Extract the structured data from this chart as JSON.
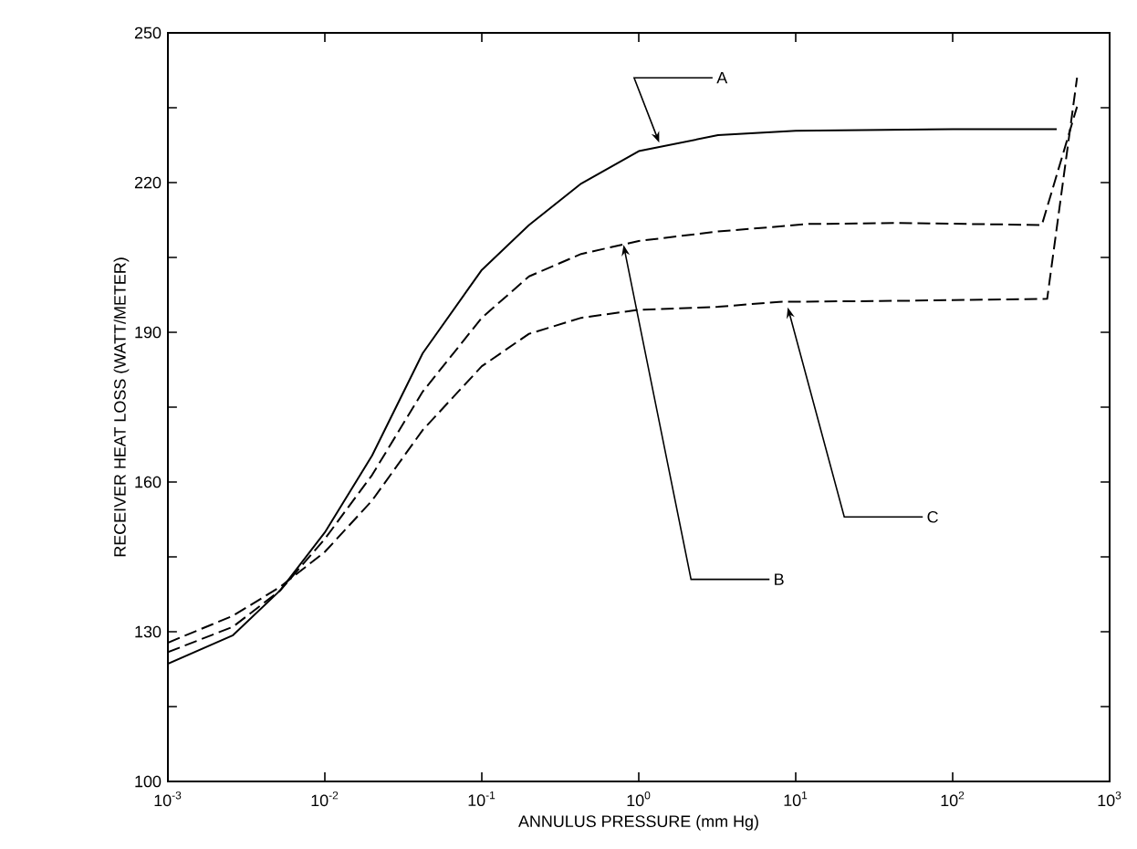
{
  "chart_data": {
    "type": "line",
    "xlabel": "ANNULUS PRESSURE (mm Hg)",
    "ylabel": "RECEIVER HEAT LOSS (WATT/METER)",
    "log": "x",
    "grid": false,
    "marker": "none",
    "xlim": [
      0.001,
      1000
    ],
    "ylim": [
      100,
      250
    ],
    "xticks": [
      {
        "value": 0.001,
        "label": "10$^{-3}$"
      },
      {
        "value": 0.01,
        "label": "10$^{-2}$"
      },
      {
        "value": 0.1,
        "label": "10$^{-1}$"
      },
      {
        "value": 1,
        "label": "10$^{0}$"
      },
      {
        "value": 10,
        "label": "10$^{1}$"
      },
      {
        "value": 100,
        "label": "10$^{2}$"
      },
      {
        "value": 1000,
        "label": "10$^{3}$"
      }
    ],
    "yticks": [
      100,
      {
        "value": 115,
        "label": null
      },
      130,
      {
        "value": 145,
        "label": null
      },
      160,
      {
        "value": 175,
        "label": null
      },
      190,
      {
        "value": 205,
        "label": null
      },
      220,
      {
        "value": 235,
        "label": null
      },
      250
    ],
    "series": [
      {
        "color": "#000000",
        "line_style": "solid",
        "x": [
          0.001,
          0.0026,
          0.0052,
          0.01,
          0.02,
          0.042,
          0.1,
          0.2,
          0.43,
          1,
          3.2,
          10,
          100,
          460
        ],
        "values": [
          123.6,
          129.3,
          138.3,
          149.9,
          165.3,
          185.8,
          202.5,
          211.5,
          219.8,
          226.3,
          229.5,
          230.4,
          230.7,
          230.7
        ]
      },
      {
        "color": "#000000",
        "line_style": "dashed",
        "x": [
          0.001,
          0.0026,
          0.0052,
          0.01,
          0.02,
          0.042,
          0.1,
          0.2,
          0.43,
          1,
          3.2,
          12,
          45,
          370,
          620
        ],
        "values": [
          125.9,
          131,
          138.3,
          148.6,
          161.4,
          178.1,
          192.9,
          201.2,
          205.7,
          208.3,
          210.2,
          211.7,
          211.9,
          211.5,
          235.2
        ]
      },
      {
        "color": "#000000",
        "line_style": "dashed",
        "x": [
          0.001,
          0.0026,
          0.0052,
          0.01,
          0.02,
          0.042,
          0.1,
          0.2,
          0.43,
          1,
          3.2,
          7.8,
          45,
          400,
          620
        ],
        "values": [
          127.8,
          133.2,
          139,
          146,
          156.3,
          170.4,
          183.2,
          189.7,
          192.9,
          194.5,
          195.1,
          196.1,
          196.3,
          196.7,
          241
        ]
      }
    ],
    "annotations": [
      {
        "text": "A",
        "x": 1.35,
        "y": 228
      },
      {
        "text": "B",
        "x": 0.8,
        "y": 207.5
      },
      {
        "text": "C",
        "x": 8.9,
        "y": 195
      }
    ]
  }
}
